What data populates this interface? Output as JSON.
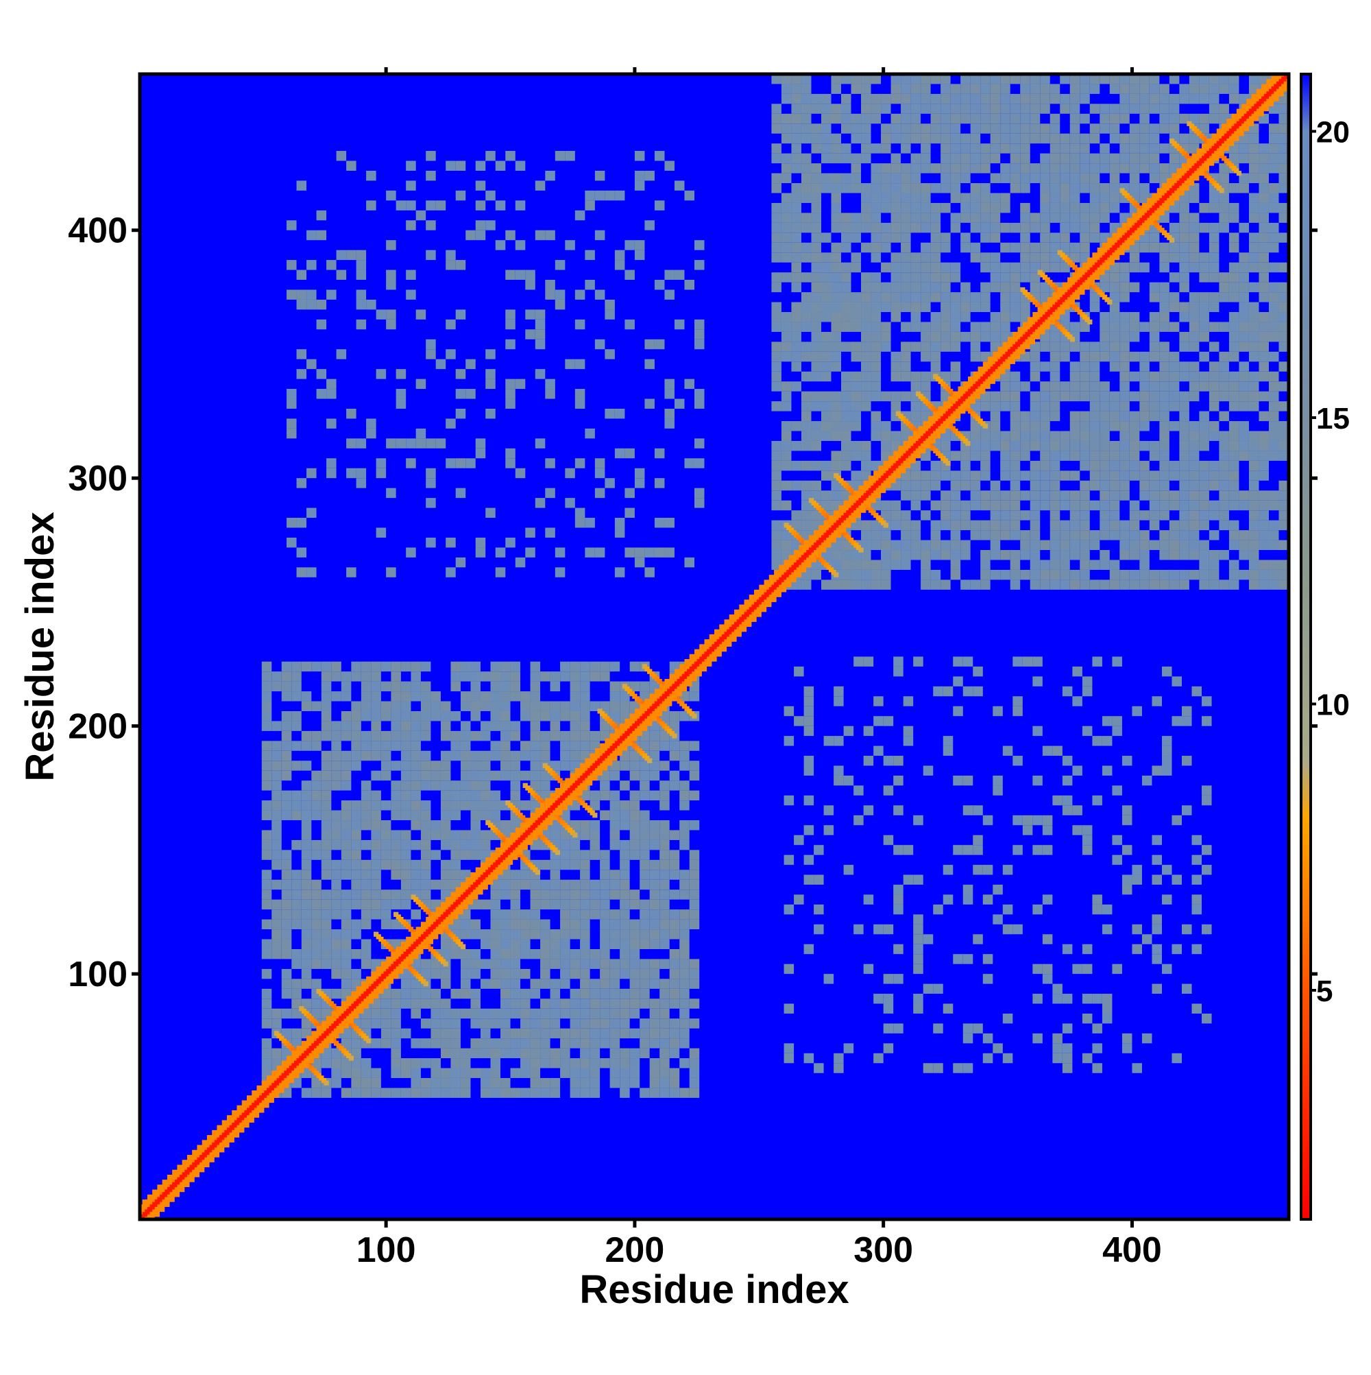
{
  "chart_data": {
    "type": "heatmap",
    "title": "",
    "xlabel": "Residue index",
    "ylabel": "Residue index",
    "n_residues": 463,
    "xlim": [
      1,
      463
    ],
    "ylim": [
      1,
      463
    ],
    "x_ticks": [
      100,
      200,
      300,
      400
    ],
    "y_ticks": [
      100,
      200,
      300,
      400
    ],
    "background_value": 21,
    "domains": [
      {
        "name": "",
        "start": 50,
        "end": 225
      },
      {
        "name": "",
        "start": 255,
        "end": 463
      }
    ],
    "diagonal_distance_A": 2,
    "colorbar": {
      "range": [
        1,
        21
      ],
      "ticks": [
        5,
        10,
        15,
        20
      ],
      "colors": [
        {
          "stop": 1,
          "color": "#ff0000"
        },
        {
          "stop": 5,
          "color": "#ff5500"
        },
        {
          "stop": 8,
          "color": "#ffa500"
        },
        {
          "stop": 9,
          "color": "#aaa98a"
        },
        {
          "stop": 12,
          "color": "#8c9c8c"
        },
        {
          "stop": 15,
          "color": "#7a8fa2"
        },
        {
          "stop": 18,
          "color": "#6d8eb6"
        },
        {
          "stop": 20,
          "color": "#6a8cc0"
        },
        {
          "stop": 21,
          "color": "#0000ff"
        }
      ]
    },
    "grid": false,
    "legend": "right colorbar"
  }
}
